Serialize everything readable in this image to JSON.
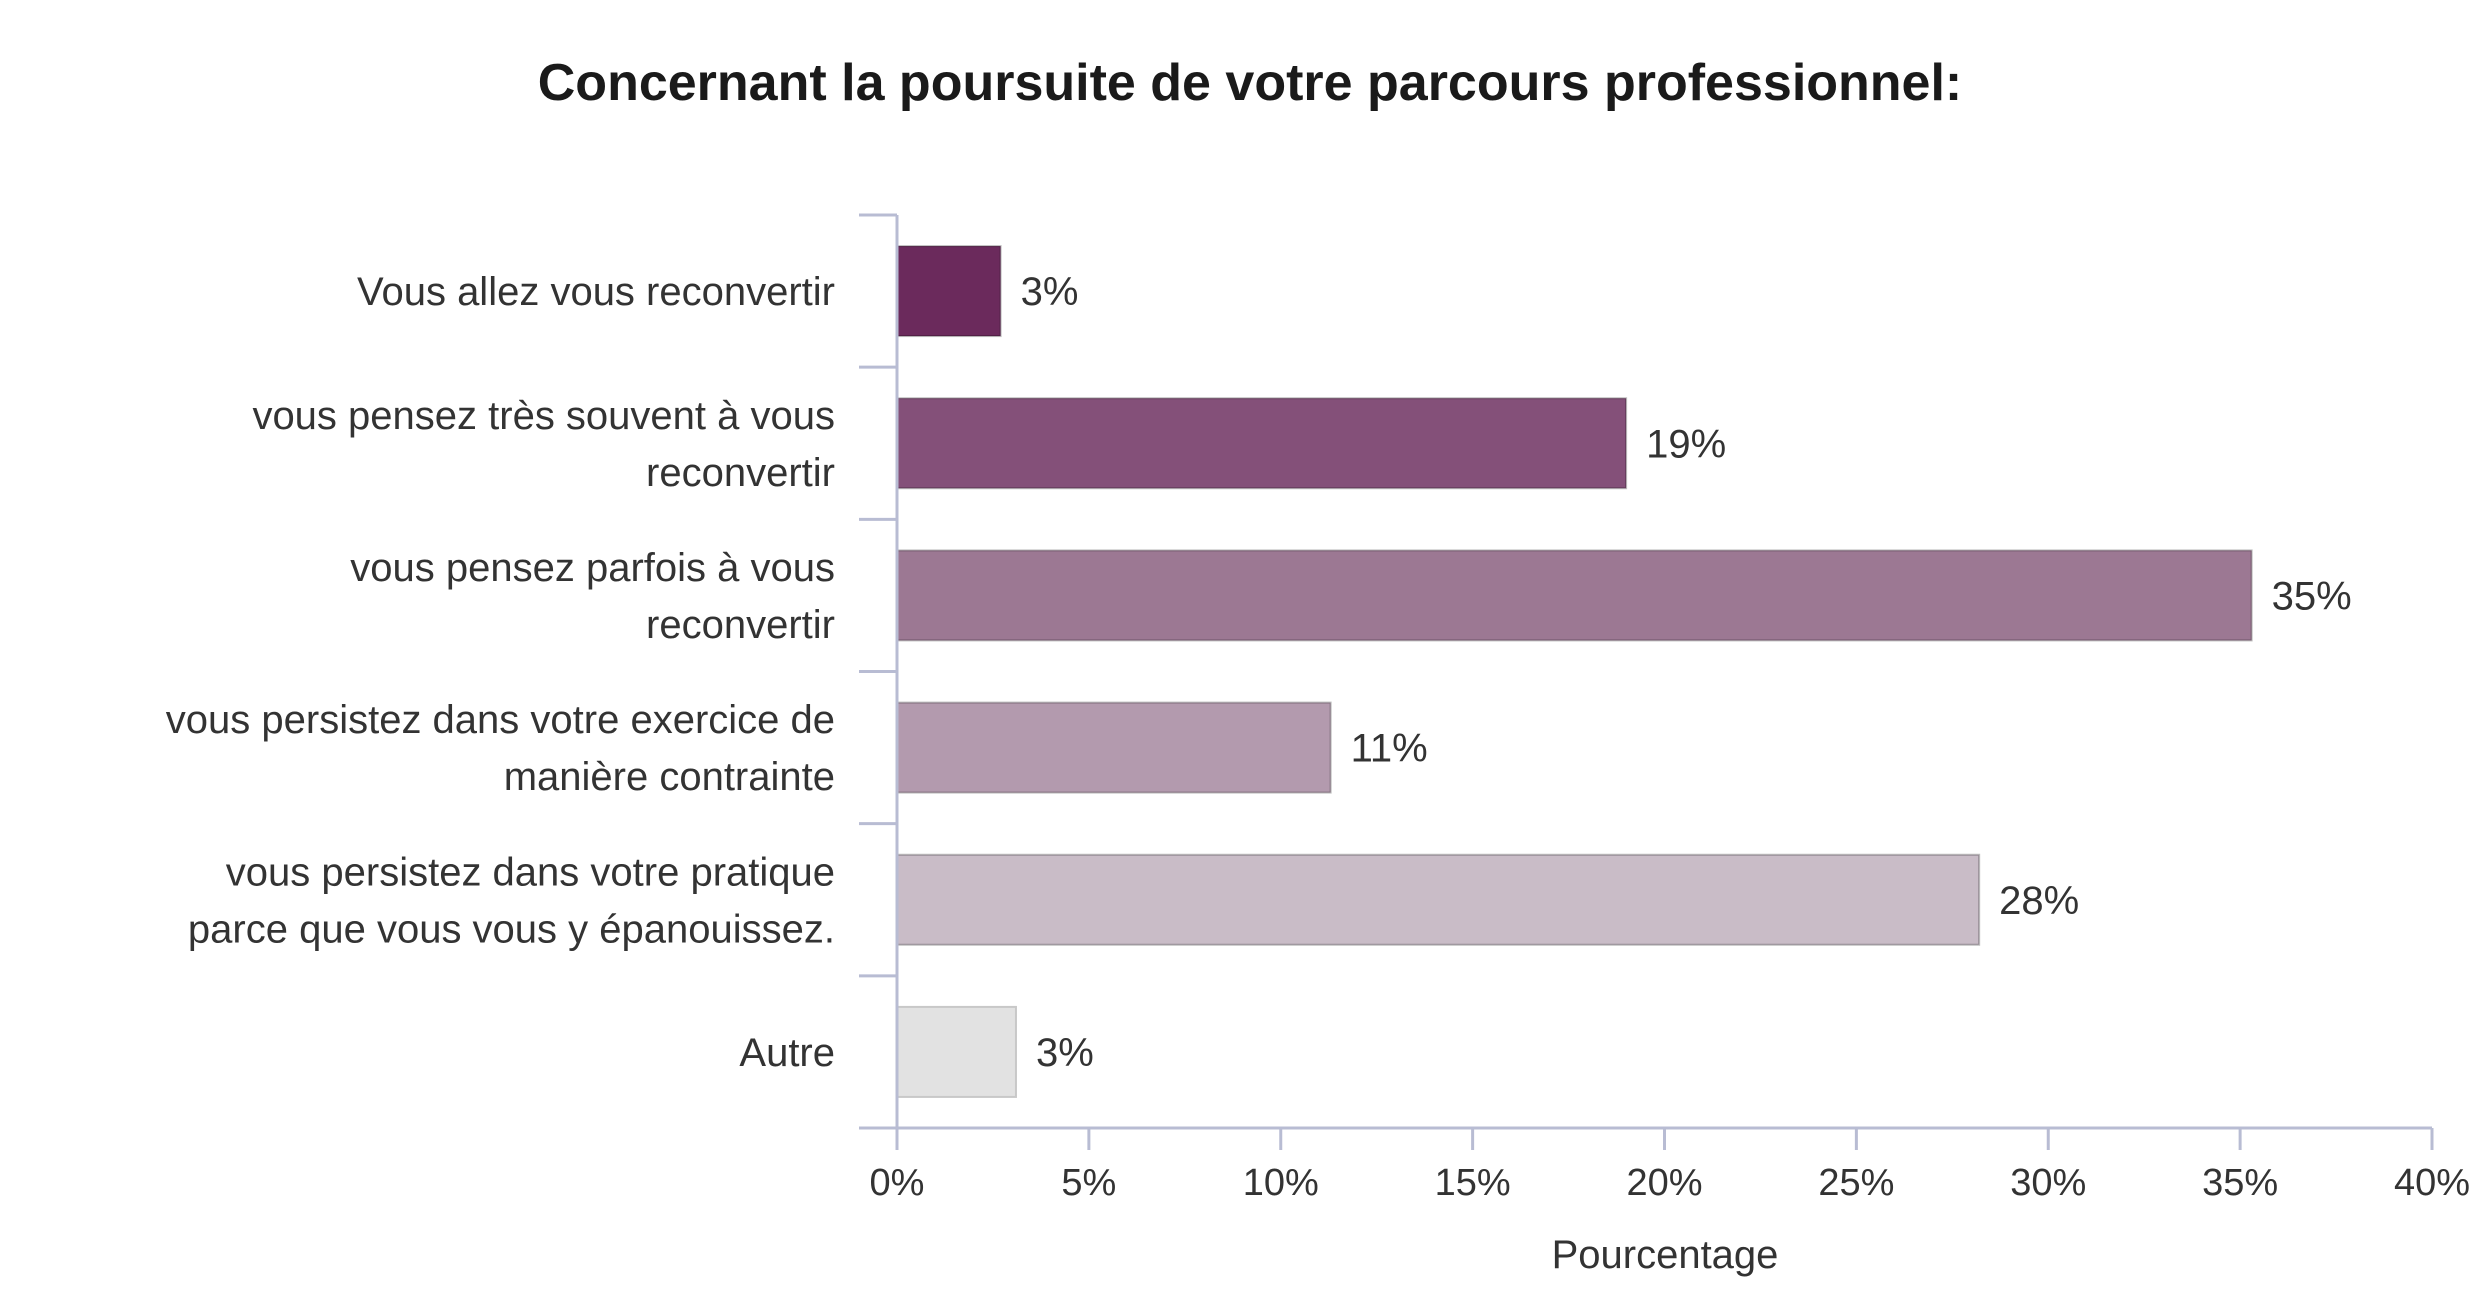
{
  "chart_data": {
    "type": "bar",
    "orientation": "horizontal",
    "title": "Concernant la poursuite de votre parcours professionnel:",
    "xlabel": "Pourcentage",
    "ylabel": "",
    "xlim": [
      0,
      40
    ],
    "x_ticks": [
      "0%",
      "5%",
      "10%",
      "15%",
      "20%",
      "25%",
      "30%",
      "35%",
      "40%"
    ],
    "x_tick_values": [
      0,
      5,
      10,
      15,
      20,
      25,
      30,
      35,
      40
    ],
    "categories": [
      [
        "Vous allez vous reconvertir"
      ],
      [
        "vous pensez très souvent à vous",
        "reconvertir"
      ],
      [
        "vous pensez parfois à vous",
        "reconvertir"
      ],
      [
        "vous persistez dans votre exercice de",
        "manière contrainte"
      ],
      [
        "vous persistez dans votre pratique",
        "parce que vous vous y épanouissez."
      ],
      [
        "Autre"
      ]
    ],
    "values": [
      2.7,
      19.0,
      35.3,
      11.3,
      28.2,
      3.1
    ],
    "value_labels": [
      "3%",
      "19%",
      "35%",
      "11%",
      "28%",
      "3%"
    ],
    "bar_colors": [
      "#6b2a5c",
      "#845079",
      "#9c7893",
      "#b39aae",
      "#c9bcc7",
      "#e2e2e2"
    ],
    "grid": false,
    "legend": "none"
  }
}
